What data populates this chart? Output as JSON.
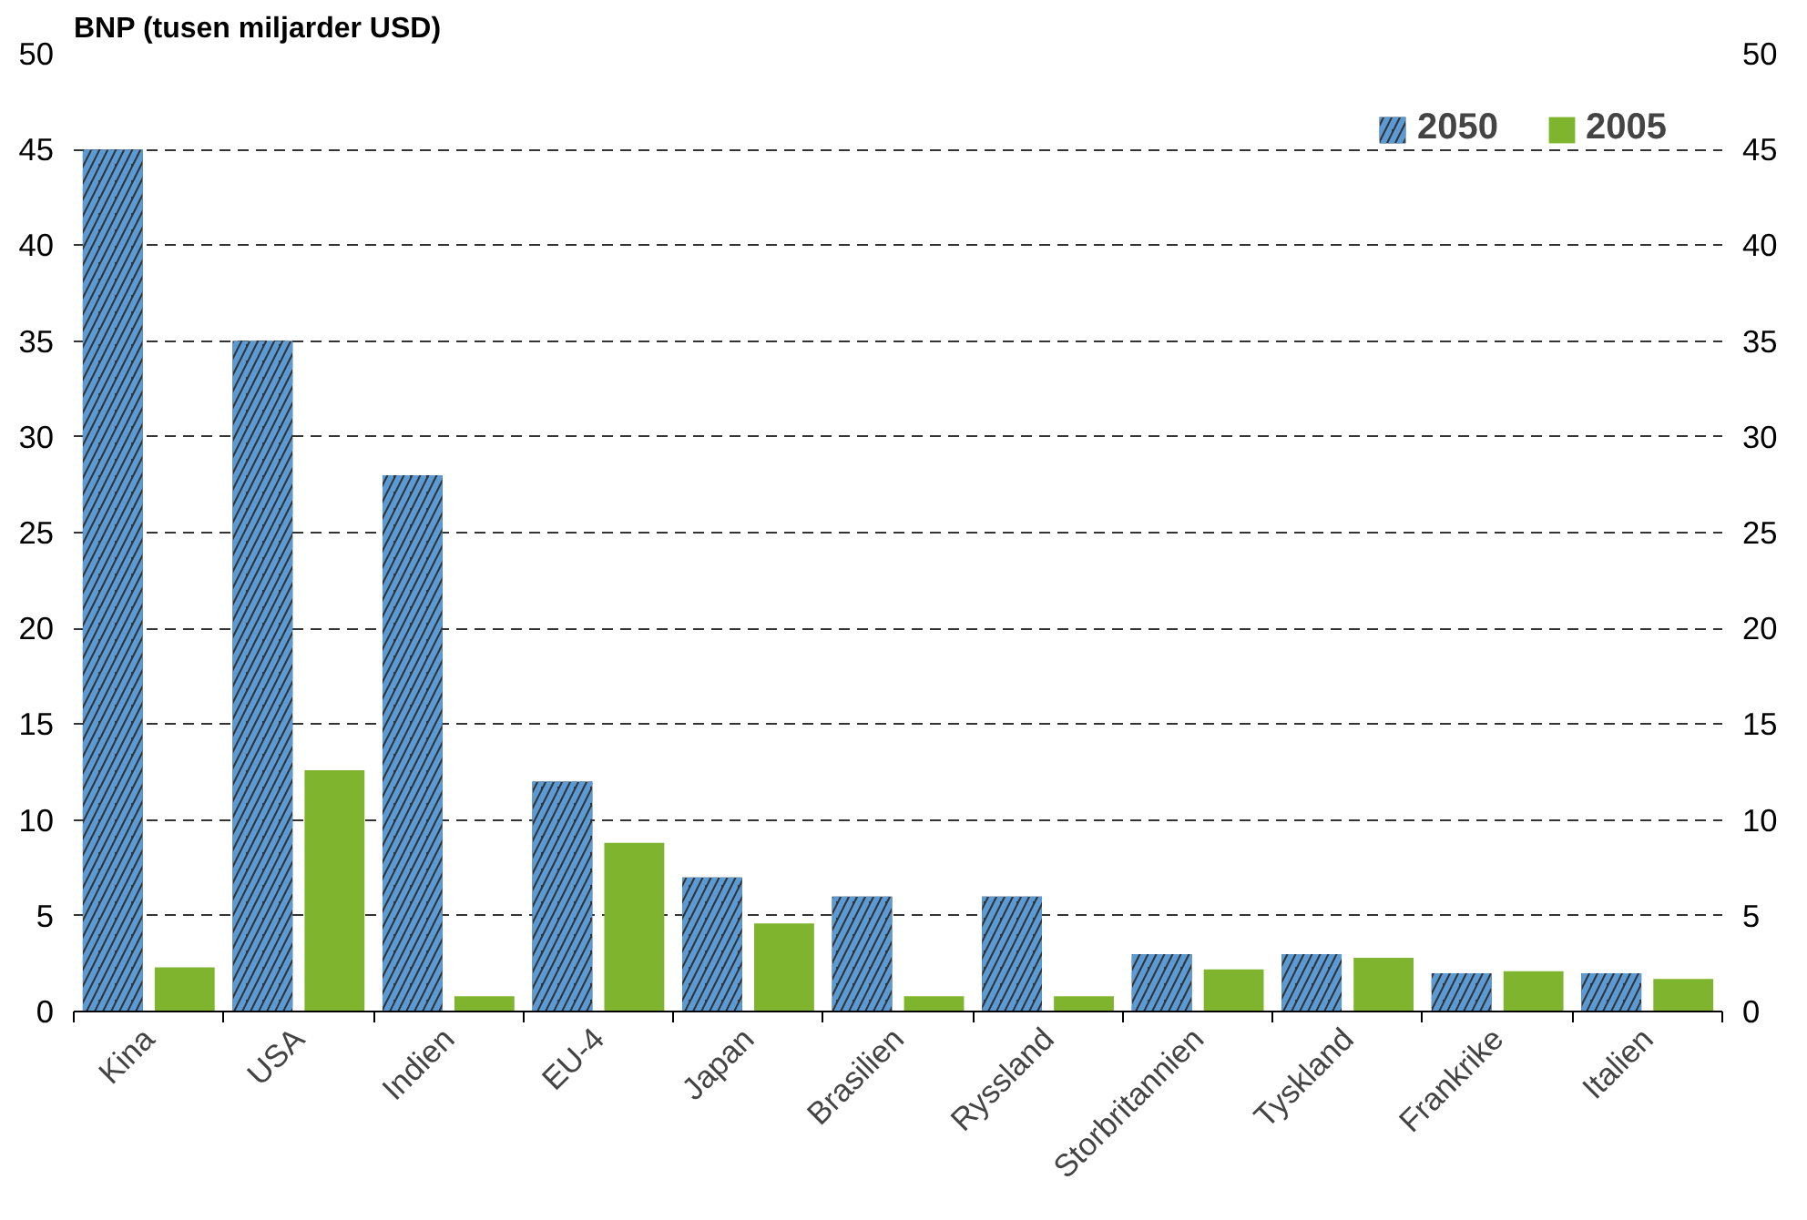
{
  "chart_data": {
    "type": "bar",
    "ylabel": "BNP (tusen miljarder USD)",
    "categories": [
      "Kina",
      "USA",
      "Indien",
      "EU-4",
      "Japan",
      "Brasilien",
      "Ryssland",
      "Storbritannien",
      "Tyskland",
      "Frankrike",
      "Italien"
    ],
    "series": [
      {
        "name": "2050",
        "color": "#333333",
        "values": [
          45,
          35,
          28,
          12,
          7,
          6,
          6,
          3,
          3,
          2,
          2
        ]
      },
      {
        "name": "2005",
        "color": "#7fb52e",
        "values": [
          2.3,
          12.6,
          0.8,
          8.8,
          4.6,
          0.8,
          0.8,
          2.2,
          2.8,
          2.1,
          1.7
        ]
      }
    ],
    "ylim": [
      0,
      50
    ],
    "yticks": [
      0,
      5,
      10,
      15,
      20,
      25,
      30,
      35,
      40,
      45,
      50
    ],
    "y2lim": [
      0,
      50
    ],
    "y2ticks": [
      0,
      5,
      10,
      15,
      20,
      25,
      30,
      35,
      40,
      45,
      50
    ],
    "grid": "y",
    "legend": "top right"
  }
}
